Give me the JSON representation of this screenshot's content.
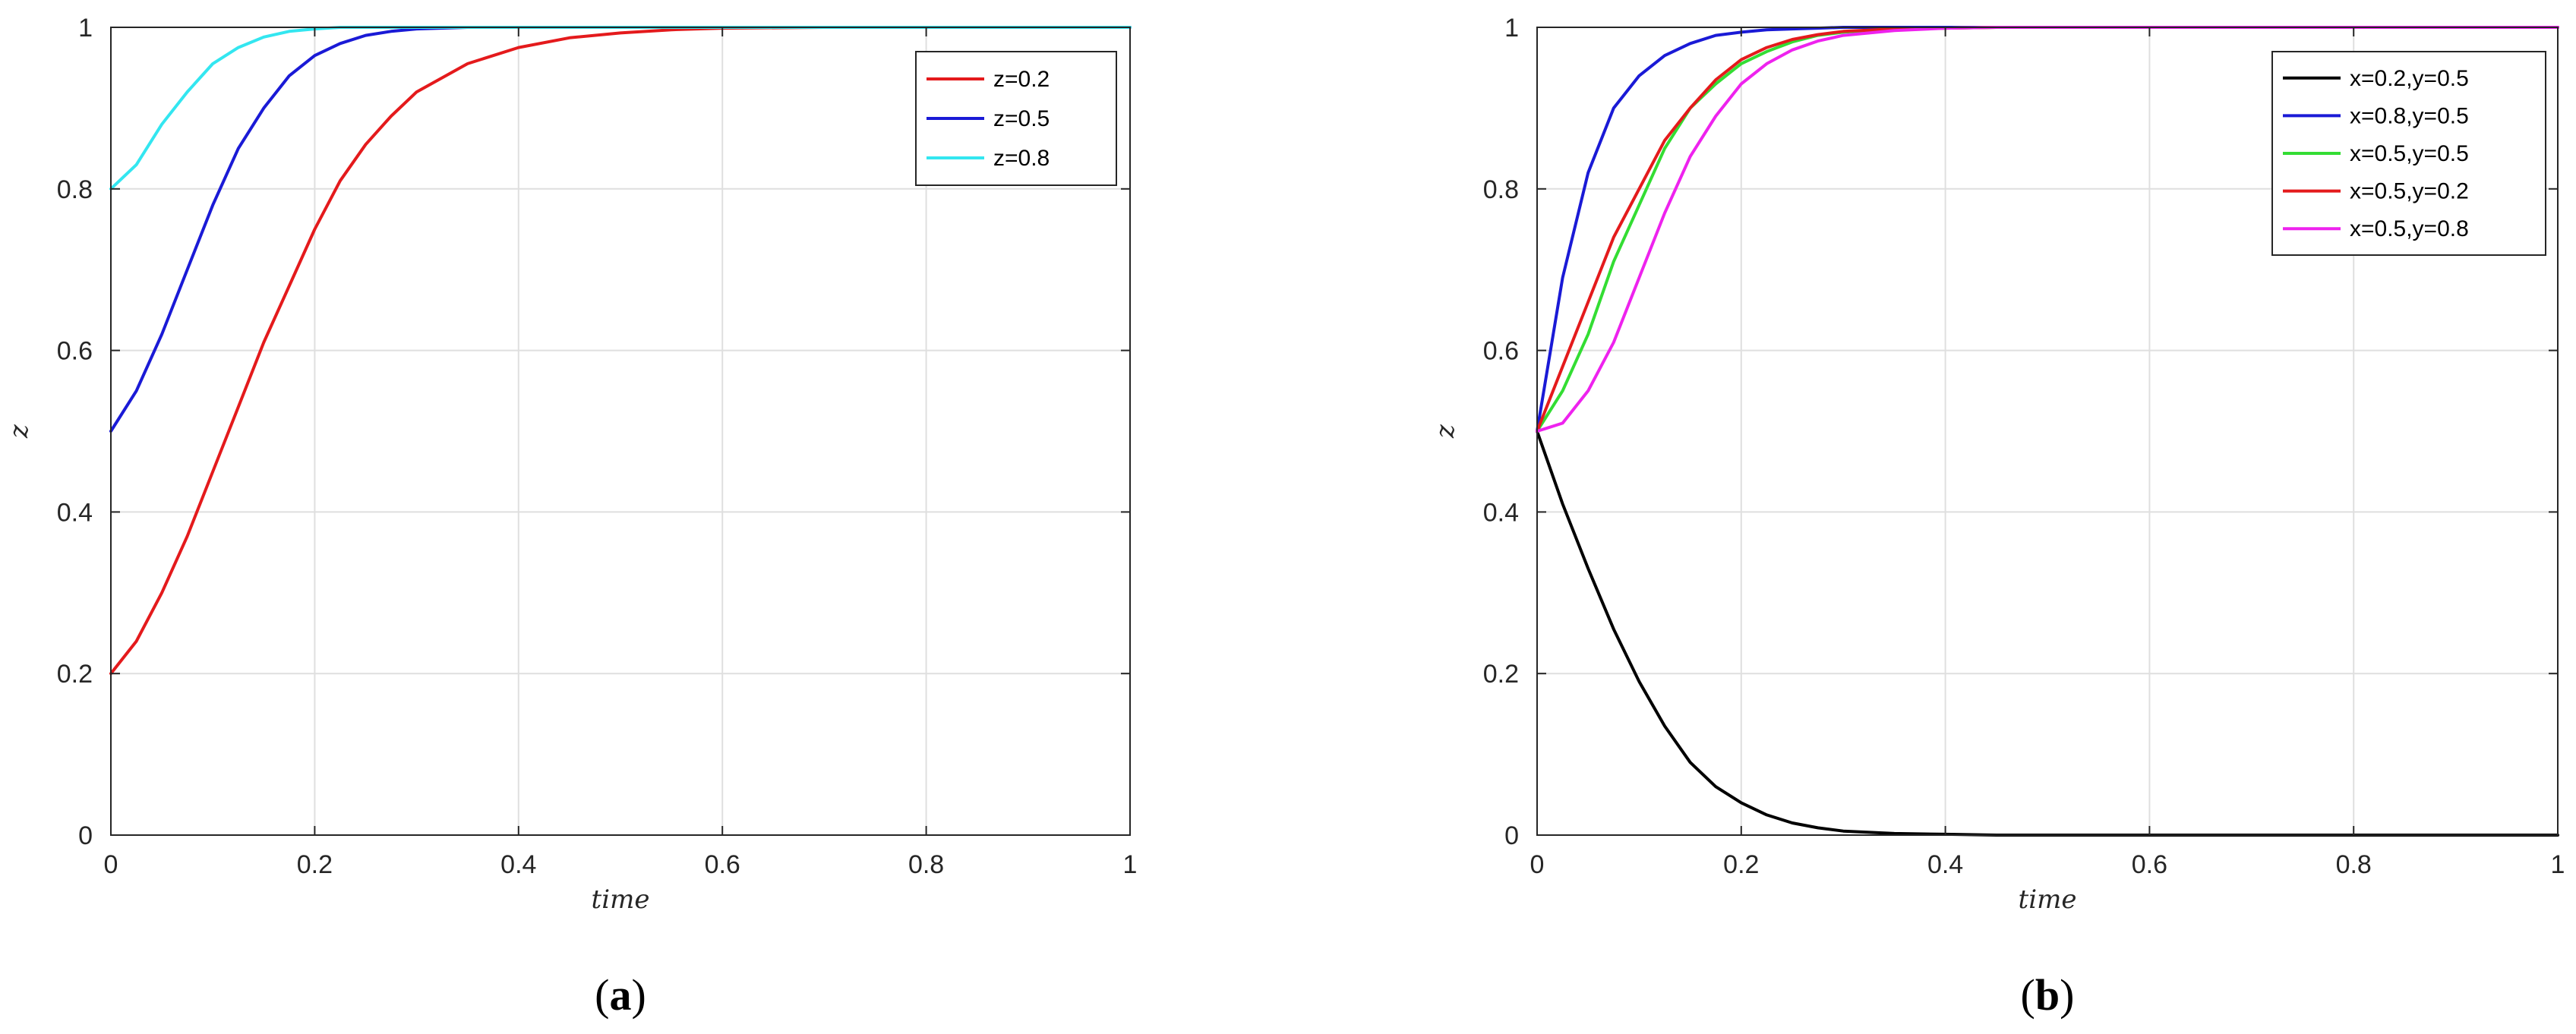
{
  "chart_data": [
    {
      "panel": "(a)",
      "panel_letter": "a",
      "type": "line",
      "xlabel": "time",
      "ylabel": "z",
      "xlim": [
        0,
        1
      ],
      "ylim": [
        0,
        1
      ],
      "xticks": [
        "0",
        "0.2",
        "0.4",
        "0.6",
        "0.8",
        "1"
      ],
      "yticks": [
        "0",
        "0.2",
        "0.4",
        "0.6",
        "0.8",
        "1"
      ],
      "grid": true,
      "legend_position": "top-right",
      "x": [
        0,
        0.025,
        0.05,
        0.075,
        0.1,
        0.125,
        0.15,
        0.175,
        0.2,
        0.225,
        0.25,
        0.275,
        0.3,
        0.35,
        0.4,
        0.45,
        0.5,
        0.55,
        0.6,
        0.7,
        0.8,
        0.9,
        1.0
      ],
      "series": [
        {
          "name": "z=0.2",
          "color": "#e41a1c",
          "values": [
            0.2,
            0.24,
            0.3,
            0.37,
            0.45,
            0.53,
            0.61,
            0.68,
            0.75,
            0.81,
            0.855,
            0.89,
            0.92,
            0.955,
            0.975,
            0.987,
            0.993,
            0.997,
            0.999,
            1,
            1,
            1,
            1
          ]
        },
        {
          "name": "z=0.5",
          "color": "#1a1ad6",
          "values": [
            0.5,
            0.55,
            0.62,
            0.7,
            0.78,
            0.85,
            0.9,
            0.94,
            0.965,
            0.98,
            0.99,
            0.995,
            0.998,
            1,
            1,
            1,
            1,
            1,
            1,
            1,
            1,
            1,
            1
          ]
        },
        {
          "name": "z=0.8",
          "color": "#33e6f0",
          "values": [
            0.8,
            0.83,
            0.88,
            0.92,
            0.955,
            0.975,
            0.988,
            0.995,
            0.998,
            1,
            1,
            1,
            1,
            1,
            1,
            1,
            1,
            1,
            1,
            1,
            1,
            1,
            1
          ]
        }
      ]
    },
    {
      "panel": "(b)",
      "panel_letter": "b",
      "type": "line",
      "xlabel": "time",
      "ylabel": "z",
      "xlim": [
        0,
        1
      ],
      "ylim": [
        0,
        1
      ],
      "xticks": [
        "0",
        "0.2",
        "0.4",
        "0.6",
        "0.8",
        "1"
      ],
      "yticks": [
        "0",
        "0.2",
        "0.4",
        "0.6",
        "0.8",
        "1"
      ],
      "grid": true,
      "legend_position": "top-right",
      "x": [
        0,
        0.025,
        0.05,
        0.075,
        0.1,
        0.125,
        0.15,
        0.175,
        0.2,
        0.225,
        0.25,
        0.275,
        0.3,
        0.35,
        0.4,
        0.45,
        0.5,
        0.55,
        0.6,
        0.7,
        0.8,
        0.9,
        1.0
      ],
      "series": [
        {
          "name": "x=0.2,y=0.5",
          "color": "#000000",
          "values": [
            0.5,
            0.41,
            0.33,
            0.255,
            0.19,
            0.135,
            0.09,
            0.06,
            0.04,
            0.025,
            0.015,
            0.009,
            0.005,
            0.002,
            0.001,
            0,
            0,
            0,
            0,
            0,
            0,
            0,
            0
          ]
        },
        {
          "name": "x=0.8,y=0.5",
          "color": "#1a1ad6",
          "values": [
            0.5,
            0.69,
            0.82,
            0.9,
            0.94,
            0.965,
            0.98,
            0.99,
            0.994,
            0.997,
            0.998,
            0.999,
            1,
            1,
            1,
            1,
            1,
            1,
            1,
            1,
            1,
            1,
            1
          ]
        },
        {
          "name": "x=0.5,y=0.5",
          "color": "#33dd33",
          "values": [
            0.5,
            0.55,
            0.62,
            0.71,
            0.78,
            0.85,
            0.9,
            0.93,
            0.955,
            0.97,
            0.982,
            0.99,
            0.994,
            0.998,
            0.999,
            1,
            1,
            1,
            1,
            1,
            1,
            1,
            1
          ]
        },
        {
          "name": "x=0.5,y=0.2",
          "color": "#e41a1c",
          "values": [
            0.5,
            0.58,
            0.66,
            0.74,
            0.8,
            0.86,
            0.9,
            0.935,
            0.96,
            0.975,
            0.985,
            0.991,
            0.995,
            0.998,
            0.999,
            1,
            1,
            1,
            1,
            1,
            1,
            1,
            1
          ]
        },
        {
          "name": "x=0.5,y=0.8",
          "color": "#ee22ee",
          "values": [
            0.5,
            0.51,
            0.55,
            0.61,
            0.69,
            0.77,
            0.84,
            0.89,
            0.93,
            0.955,
            0.972,
            0.983,
            0.99,
            0.996,
            0.999,
            1,
            1,
            1,
            1,
            1,
            1,
            1,
            1
          ]
        }
      ]
    }
  ]
}
